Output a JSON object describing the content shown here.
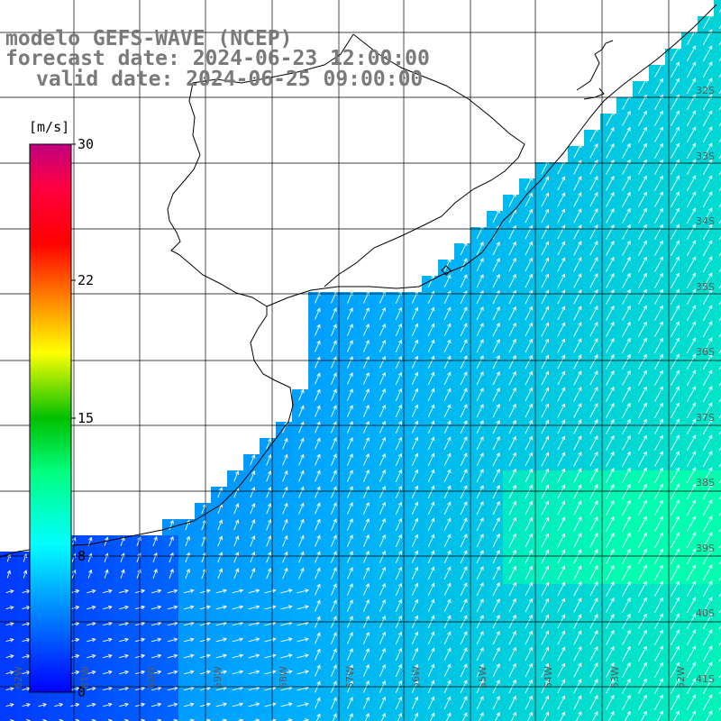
{
  "title": {
    "line1": "modelo GEFS-WAVE (NCEP)",
    "line2": "forecast date: 2024-06-23 12:00:00",
    "line3": "valid date: 2024-06-25 09:00:00"
  },
  "colorbar": {
    "unit": "[m/s]",
    "ticks": [
      "30",
      "22",
      "15",
      "8",
      "0"
    ],
    "range": [
      0,
      30
    ],
    "stops": [
      "#0000ff",
      "#0080ff",
      "#00ffff",
      "#00ff80",
      "#00c000",
      "#ffff00",
      "#ff8000",
      "#ff0000",
      "#ff0080",
      "#c00080"
    ]
  },
  "grid": {
    "lat_labels": [
      "32S",
      "33S",
      "34S",
      "35S",
      "36S",
      "37S",
      "38S",
      "39S",
      "40S",
      "41S"
    ],
    "lon_labels": [
      "62W",
      "61W",
      "60W",
      "59W",
      "58W",
      "57W",
      "56W",
      "55W",
      "54W",
      "53W",
      "52W"
    ]
  },
  "colors": {
    "land": "#ffffff",
    "coast": "#000000",
    "grid": "#000000",
    "arrow": "#ffffff",
    "title": "#7a7a7a"
  }
}
